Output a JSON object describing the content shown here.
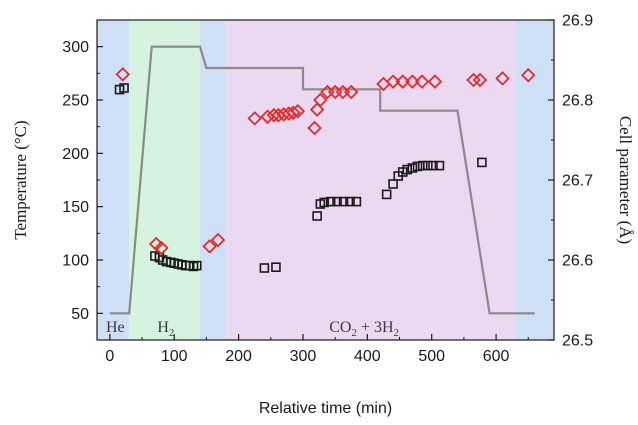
{
  "chart_data": {
    "type": "scatter",
    "xlabel": "Relative time (min)",
    "ylabel_left": "Temperature (°C)",
    "ylabel_right": "Cell parameter (Å)",
    "xlim": [
      -20,
      690
    ],
    "ylim_left": [
      25,
      325
    ],
    "ylim_right": [
      26.5,
      26.9
    ],
    "x_ticks": [
      0,
      100,
      200,
      300,
      400,
      500,
      600
    ],
    "y_left_ticks": [
      50,
      100,
      150,
      200,
      250,
      300
    ],
    "y_right_ticks": [
      26.5,
      26.6,
      26.7,
      26.8,
      26.9
    ],
    "grid": false,
    "regions": [
      {
        "label": "He",
        "x_start": -20,
        "x_end": 30,
        "color": "#cfe0f6"
      },
      {
        "label": "H2",
        "label_main": "H",
        "label_sub": "2",
        "x_start": 30,
        "x_end": 140,
        "color": "#d6f3df"
      },
      {
        "label": "",
        "x_start": 140,
        "x_end": 180,
        "color": "#cfe0f6"
      },
      {
        "label": "CO2 + 3H2",
        "label_parts": [
          {
            "t": "CO",
            "sub": false
          },
          {
            "t": "2",
            "sub": true
          },
          {
            "t": " + 3H",
            "sub": false
          },
          {
            "t": "2",
            "sub": true
          }
        ],
        "x_start": 180,
        "x_end": 630,
        "color": "#ead9f1"
      },
      {
        "label": "",
        "x_start": 630,
        "x_end": 690,
        "color": "#cfe0f6"
      }
    ],
    "series": [
      {
        "kind": "temperature-line",
        "axis": "left",
        "color": "#8a8a8a",
        "points": [
          [
            0,
            50
          ],
          [
            30,
            50
          ],
          [
            65,
            300
          ],
          [
            140,
            300
          ],
          [
            150,
            280
          ],
          [
            300,
            280
          ],
          [
            300,
            260
          ],
          [
            420,
            260
          ],
          [
            420,
            240
          ],
          [
            540,
            240
          ],
          [
            590,
            50
          ],
          [
            660,
            50
          ]
        ]
      },
      {
        "kind": "cell-param-diamonds",
        "axis": "right",
        "color": "#e8282b",
        "points": [
          [
            20,
            26.832
          ],
          [
            72,
            26.62
          ],
          [
            80,
            26.615
          ],
          [
            155,
            26.617
          ],
          [
            168,
            26.625
          ],
          [
            225,
            26.777
          ],
          [
            245,
            26.779
          ],
          [
            255,
            26.781
          ],
          [
            262,
            26.781
          ],
          [
            270,
            26.782
          ],
          [
            278,
            26.783
          ],
          [
            285,
            26.784
          ],
          [
            292,
            26.786
          ],
          [
            318,
            26.765
          ],
          [
            322,
            26.788
          ],
          [
            327,
            26.8
          ],
          [
            338,
            26.81
          ],
          [
            350,
            26.81
          ],
          [
            362,
            26.81
          ],
          [
            375,
            26.81
          ],
          [
            425,
            26.82
          ],
          [
            440,
            26.823
          ],
          [
            455,
            26.823
          ],
          [
            470,
            26.823
          ],
          [
            485,
            26.823
          ],
          [
            505,
            26.823
          ],
          [
            565,
            26.825
          ],
          [
            575,
            26.825
          ],
          [
            610,
            26.827
          ],
          [
            650,
            26.831
          ]
        ]
      },
      {
        "kind": "cell-param-squares",
        "axis": "right",
        "color": "#1a1a1a",
        "points": [
          [
            15,
            26.813
          ],
          [
            22,
            26.815
          ],
          [
            70,
            26.605
          ],
          [
            77,
            26.603
          ],
          [
            82,
            26.6
          ],
          [
            88,
            26.598
          ],
          [
            95,
            26.597
          ],
          [
            100,
            26.596
          ],
          [
            106,
            26.595
          ],
          [
            112,
            26.594
          ],
          [
            118,
            26.593
          ],
          [
            124,
            26.593
          ],
          [
            130,
            26.592
          ],
          [
            135,
            26.593
          ],
          [
            240,
            26.59
          ],
          [
            258,
            26.591
          ],
          [
            322,
            26.655
          ],
          [
            327,
            26.67
          ],
          [
            333,
            26.672
          ],
          [
            343,
            26.673
          ],
          [
            353,
            26.673
          ],
          [
            363,
            26.673
          ],
          [
            373,
            26.673
          ],
          [
            383,
            26.673
          ],
          [
            430,
            26.682
          ],
          [
            440,
            26.695
          ],
          [
            448,
            26.705
          ],
          [
            455,
            26.71
          ],
          [
            462,
            26.713
          ],
          [
            470,
            26.715
          ],
          [
            478,
            26.717
          ],
          [
            486,
            26.718
          ],
          [
            494,
            26.718
          ],
          [
            502,
            26.718
          ],
          [
            512,
            26.718
          ],
          [
            578,
            26.722
          ]
        ]
      }
    ]
  }
}
